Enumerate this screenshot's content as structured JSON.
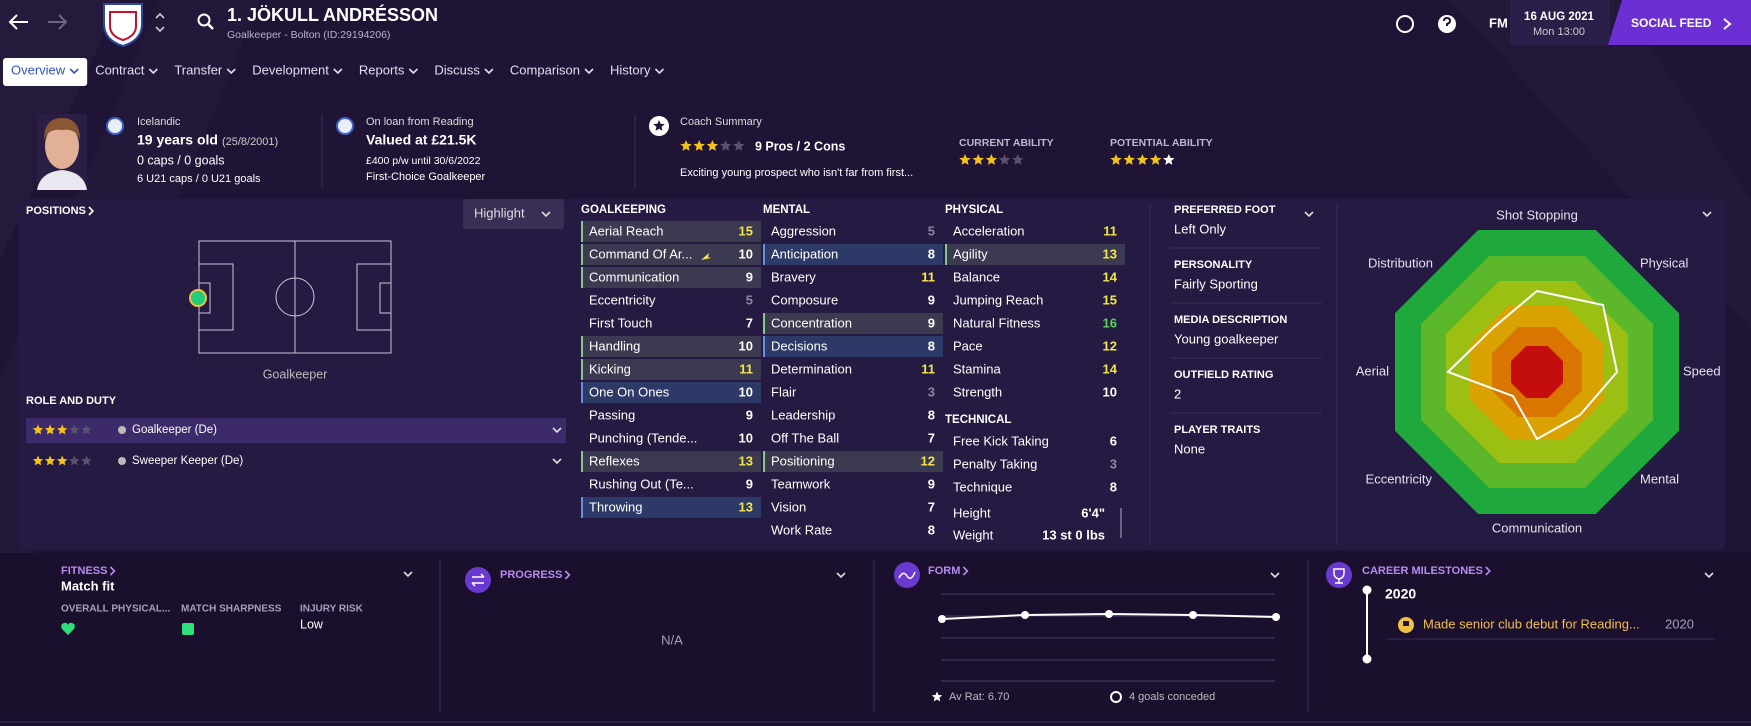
{
  "header": {
    "title": "1. JÖKULL ANDRÉSSON",
    "subtitle": "Goalkeeper - Bolton (ID:29194206)",
    "fm": "FM",
    "date": "16 AUG 2021",
    "time": "Mon 13:00",
    "social_feed": "SOCIAL FEED"
  },
  "tabs": [
    "Overview",
    "Contract",
    "Transfer",
    "Development",
    "Reports",
    "Discuss",
    "Comparison",
    "History"
  ],
  "info": {
    "nationality": "Icelandic",
    "age": "19 years old",
    "dob": "(25/8/2001)",
    "caps": "0 caps / 0 goals",
    "u21": "6 U21 caps / 0 U21 goals",
    "loan": "On loan from Reading",
    "value": "Valued at £21.5K",
    "wage": "£400 p/w until 30/6/2022",
    "squad_status": "First-Choice Goalkeeper",
    "coach_summary": "Coach Summary",
    "pros_cons": "9 Pros / 2 Cons",
    "summary": "Exciting young prospect who isn't far from first...",
    "current_ability": "CURRENT ABILITY",
    "potential_ability": "POTENTIAL ABILITY"
  },
  "positions": {
    "title": "POSITIONS",
    "highlight": "Highlight",
    "position": "Goalkeeper",
    "role_title": "ROLE AND DUTY",
    "roles": [
      "Goalkeeper (De)",
      "Sweeper Keeper (De)"
    ]
  },
  "attributes": {
    "groups": [
      {
        "title": "GOALKEEPING",
        "rows": [
          {
            "name": "Aerial Reach",
            "value": 15,
            "highlight": "key"
          },
          {
            "name": "Command Of Ar...",
            "value": 10,
            "highlight": "key"
          },
          {
            "name": "Communication",
            "value": 9,
            "highlight": "key"
          },
          {
            "name": "Eccentricity",
            "value": 5
          },
          {
            "name": "First Touch",
            "value": 7
          },
          {
            "name": "Handling",
            "value": 10,
            "highlight": "key"
          },
          {
            "name": "Kicking",
            "value": 11,
            "highlight": "key"
          },
          {
            "name": "One On Ones",
            "value": 10,
            "highlight": "role"
          },
          {
            "name": "Passing",
            "value": 9
          },
          {
            "name": "Punching (Tende...",
            "value": 10
          },
          {
            "name": "Reflexes",
            "value": 13,
            "highlight": "key"
          },
          {
            "name": "Rushing Out (Te...",
            "value": 9
          },
          {
            "name": "Throwing",
            "value": 13,
            "highlight": "role"
          }
        ]
      },
      {
        "title": "MENTAL",
        "rows": [
          {
            "name": "Aggression",
            "value": 5
          },
          {
            "name": "Anticipation",
            "value": 8,
            "highlight": "role"
          },
          {
            "name": "Bravery",
            "value": 11
          },
          {
            "name": "Composure",
            "value": 9
          },
          {
            "name": "Concentration",
            "value": 9,
            "highlight": "key"
          },
          {
            "name": "Decisions",
            "value": 8,
            "highlight": "role"
          },
          {
            "name": "Determination",
            "value": 11
          },
          {
            "name": "Flair",
            "value": 3
          },
          {
            "name": "Leadership",
            "value": 8
          },
          {
            "name": "Off The Ball",
            "value": 7
          },
          {
            "name": "Positioning",
            "value": 12,
            "highlight": "key"
          },
          {
            "name": "Teamwork",
            "value": 9
          },
          {
            "name": "Vision",
            "value": 7
          },
          {
            "name": "Work Rate",
            "value": 8
          }
        ]
      },
      {
        "title": "PHYSICAL",
        "rows": [
          {
            "name": "Acceleration",
            "value": 11
          },
          {
            "name": "Agility",
            "value": 13,
            "highlight": "key"
          },
          {
            "name": "Balance",
            "value": 14
          },
          {
            "name": "Jumping Reach",
            "value": 15
          },
          {
            "name": "Natural Fitness",
            "value": 16
          },
          {
            "name": "Pace",
            "value": 12
          },
          {
            "name": "Stamina",
            "value": 14
          },
          {
            "name": "Strength",
            "value": 10
          }
        ]
      },
      {
        "title": "TECHNICAL",
        "rows": [
          {
            "name": "Free Kick Taking",
            "value": 6
          },
          {
            "name": "Penalty Taking",
            "value": 3
          },
          {
            "name": "Technique",
            "value": 8
          }
        ]
      }
    ],
    "physique": [
      {
        "name": "Height",
        "value": "6'4\""
      },
      {
        "name": "Weight",
        "value": "13 st 0 lbs"
      }
    ]
  },
  "profile": [
    {
      "label": "PREFERRED FOOT",
      "value": "Left Only"
    },
    {
      "label": "PERSONALITY",
      "value": "Fairly Sporting"
    },
    {
      "label": "MEDIA DESCRIPTION",
      "value": "Young goalkeeper"
    },
    {
      "label": "OUTFIELD RATING",
      "value": 2
    },
    {
      "label": "PLAYER TRAITS",
      "value": "None"
    }
  ],
  "radar_labels": [
    "Shot Stopping",
    "Physical",
    "Speed",
    "Mental",
    "Communication",
    "Eccentricity",
    "Aerial",
    "Distribution"
  ],
  "fitness": {
    "title": "FITNESS",
    "status": "Match fit",
    "labels": [
      "OVERALL PHYSICAL...",
      "MATCH SHARPNESS",
      "INJURY RISK"
    ],
    "injury_risk": "Low"
  },
  "progress": {
    "title": "PROGRESS",
    "value": "N/A"
  },
  "form": {
    "title": "FORM",
    "average": "Av Rat: 6.70",
    "conceded": "4 goals conceded"
  },
  "milestones": {
    "title": "CAREER MILESTONES",
    "year": "2020",
    "item": "Made senior club debut for Reading...",
    "item_year": "2020"
  }
}
